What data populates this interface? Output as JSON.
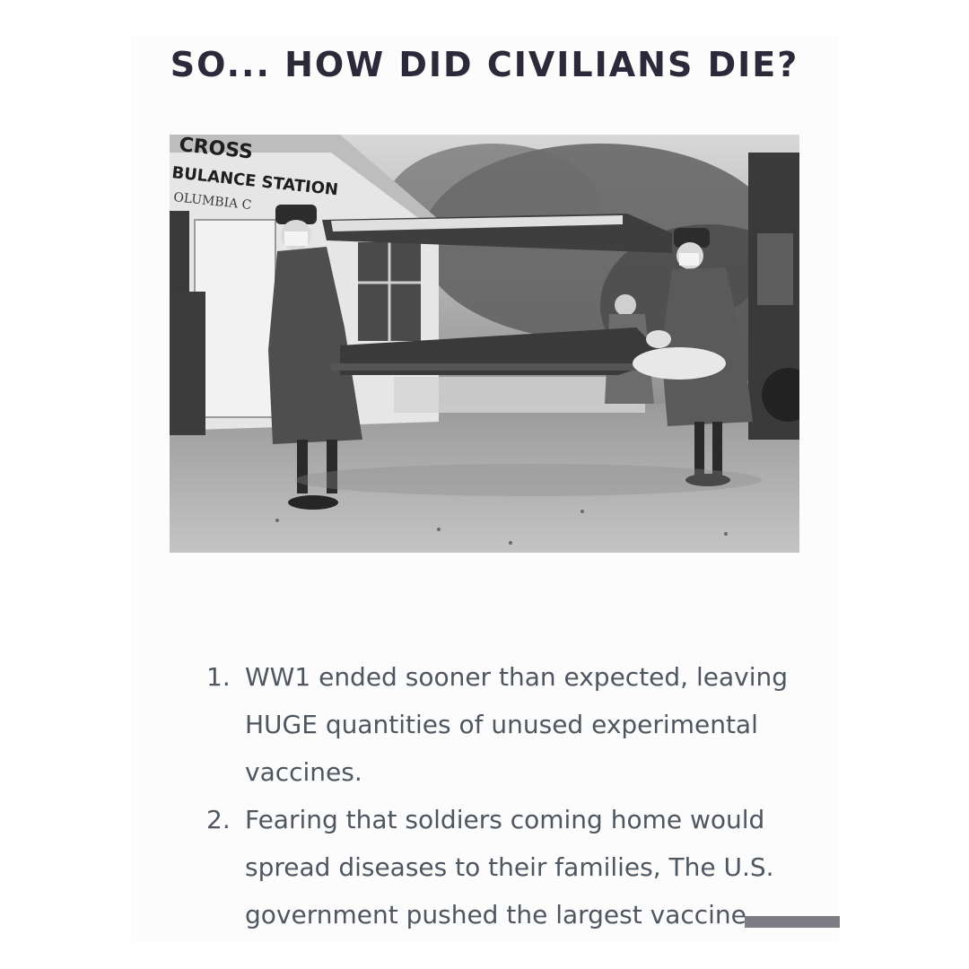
{
  "title": "SO... HOW DID CIVILIANS DIE?",
  "photo": {
    "sign_line1": "CROSS",
    "sign_line2": "BULANCE STATION",
    "sign_line3": "OLUMBIA C"
  },
  "list": {
    "items": [
      {
        "number": "1.",
        "lines": [
          "WW1 ended sooner than expected, leaving",
          "HUGE quantities of unused experimental",
          "vaccines."
        ]
      },
      {
        "number": "2.",
        "lines": [
          "Fearing that soldiers coming home would",
          "spread diseases to their families, The U.S.",
          "government pushed the largest vaccine"
        ]
      }
    ]
  }
}
